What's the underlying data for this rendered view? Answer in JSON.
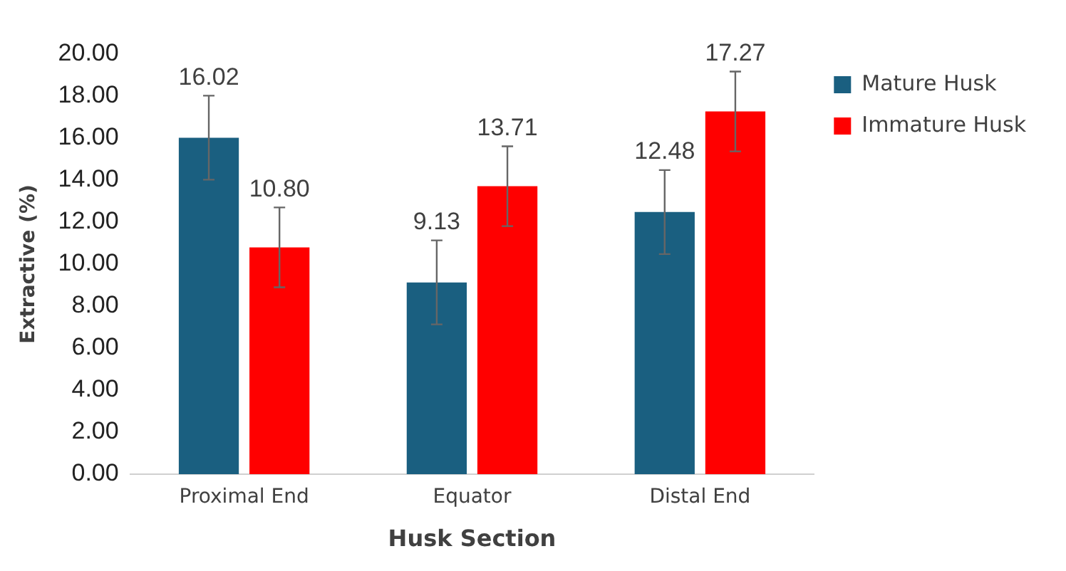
{
  "chart_data": {
    "type": "bar",
    "xlabel": "Husk Section",
    "ylabel": "Extractive (%)",
    "categories": [
      "Proximal End",
      "Equator",
      "Distal End"
    ],
    "series": [
      {
        "name": "Mature Husk",
        "color": "#1a5f80",
        "values": [
          16.02,
          9.13,
          12.48
        ],
        "errors": [
          2.0,
          2.0,
          2.0
        ]
      },
      {
        "name": "Immature Husk",
        "color": "#ff0000",
        "values": [
          10.8,
          13.71,
          17.27
        ],
        "errors": [
          1.9,
          1.9,
          1.9
        ]
      }
    ],
    "ylim": [
      0,
      20
    ],
    "yticks": [
      {
        "value": 0,
        "label": "0.00"
      },
      {
        "value": 2,
        "label": "2.00"
      },
      {
        "value": 4,
        "label": "4.00"
      },
      {
        "value": 6,
        "label": "6.00"
      },
      {
        "value": 8,
        "label": "8.00"
      },
      {
        "value": 10,
        "label": "10.00"
      },
      {
        "value": 12,
        "label": "12.00"
      },
      {
        "value": 14,
        "label": "14.00"
      },
      {
        "value": 16,
        "label": "16.00"
      },
      {
        "value": 18,
        "label": "18.00"
      },
      {
        "value": 20,
        "label": "20.00"
      }
    ],
    "value_labels": [
      "16.02",
      "9.13",
      "12.48",
      "10.80",
      "13.71",
      "17.27"
    ],
    "grid": false,
    "legend": "top right"
  }
}
